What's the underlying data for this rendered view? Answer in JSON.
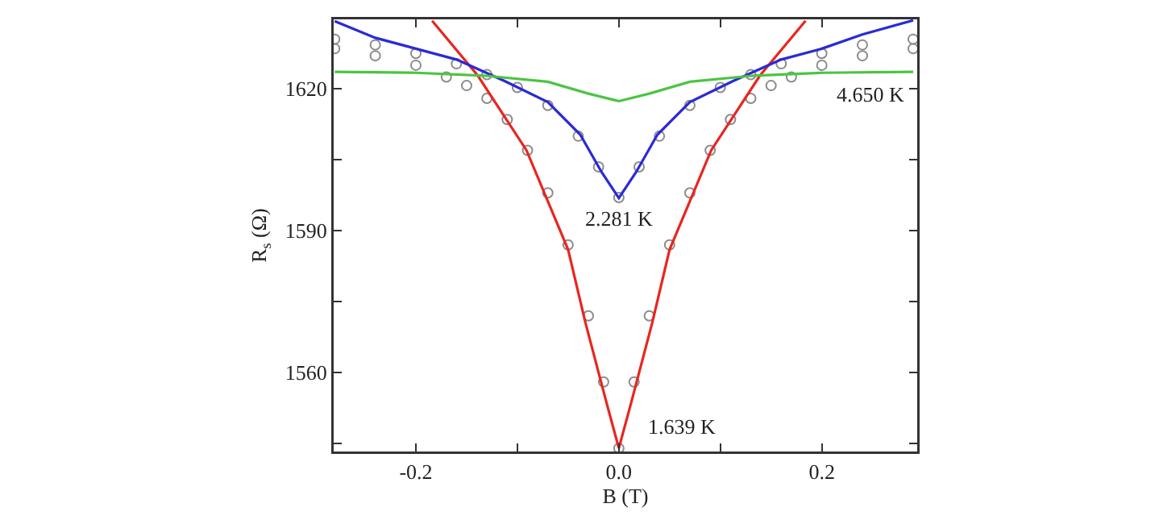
{
  "chart_data": {
    "type": "scatter",
    "xlabel": "B (T)",
    "ylabel": "R$_{s}$ (Ω)",
    "xlim": [
      -0.281,
      0.294
    ],
    "ylim": [
      1543.3,
      1634.7
    ],
    "xticks": [
      -0.2,
      {
        "value": -0.1,
        "label": null
      },
      {
        "value": 0,
        "label": "0.0"
      },
      {
        "value": 0.1,
        "label": null
      },
      0.2
    ],
    "yticks": [
      {
        "value": 1545,
        "label": null
      },
      1560,
      {
        "value": 1575,
        "label": null
      },
      1590,
      {
        "value": 1605,
        "label": null
      },
      1620
    ],
    "grid": false,
    "series": [
      {
        "marker": "circle",
        "color": "#8c8c8c",
        "x": [
          -0.28,
          -0.24,
          -0.2,
          -0.17,
          -0.15,
          -0.13,
          -0.11,
          -0.09,
          -0.07,
          -0.05,
          -0.03,
          -0.015,
          0,
          0.015,
          0.03,
          0.05,
          0.07,
          0.09,
          0.11,
          0.13,
          0.15,
          0.17,
          0.2,
          0.24,
          0.29
        ],
        "values": [
          1628.5,
          1627,
          1625,
          1622.5,
          1620.7,
          1618,
          1613.5,
          1607,
          1598,
          1587,
          1572,
          1558,
          1544,
          1558,
          1572,
          1587,
          1598,
          1607,
          1613.5,
          1618,
          1620.7,
          1622.5,
          1625,
          1627,
          1628.5
        ]
      },
      {
        "marker": "circle",
        "color": "#8c8c8c",
        "x": [
          -0.28,
          -0.24,
          -0.2,
          -0.16,
          -0.13,
          -0.1,
          -0.07,
          -0.04,
          -0.02,
          0,
          0.02,
          0.04,
          0.07,
          0.1,
          0.13,
          0.16,
          0.2,
          0.24,
          0.29
        ],
        "values": [
          1630.5,
          1629.3,
          1627.5,
          1625.3,
          1623,
          1620.3,
          1616.5,
          1610,
          1603.5,
          1597,
          1603.5,
          1610,
          1616.5,
          1620.3,
          1623,
          1625.3,
          1627.5,
          1629.3,
          1630.5
        ]
      },
      {
        "type": "line",
        "color": "#e8261f",
        "x": [
          -0.184,
          -0.139,
          -0.091,
          -0.05,
          -0.033,
          -0.012,
          0,
          0.012,
          0.033,
          0.05,
          0.091,
          0.139,
          0.184
        ],
        "values": [
          1634.4,
          1622.8,
          1607,
          1586,
          1570.6,
          1553.5,
          1544,
          1553.5,
          1570.6,
          1586,
          1607,
          1622.8,
          1634.4
        ]
      },
      {
        "type": "line",
        "color": "#2a2ad6",
        "x": [
          -0.28,
          -0.24,
          -0.2,
          -0.16,
          -0.113,
          -0.07,
          -0.038,
          -0.017,
          0,
          0.017,
          0.038,
          0.07,
          0.113,
          0.16,
          0.2,
          0.24,
          0.29
        ],
        "values": [
          1634.3,
          1630.8,
          1628.5,
          1626.2,
          1621.7,
          1617.2,
          1610.3,
          1602.4,
          1596.9,
          1602.4,
          1610.3,
          1617.2,
          1621.7,
          1626.2,
          1628.5,
          1631.5,
          1634.5
        ]
      },
      {
        "type": "line",
        "color": "#4cc444",
        "x": [
          -0.28,
          -0.2,
          -0.133,
          -0.07,
          -0.03,
          0,
          0.03,
          0.07,
          0.133,
          0.2,
          0.29
        ],
        "values": [
          1623.6,
          1623.4,
          1622.8,
          1621.5,
          1619,
          1617.4,
          1619,
          1621.5,
          1622.8,
          1623.4,
          1623.6
        ]
      }
    ],
    "annotations": [
      "2.281 K",
      "1.639 K",
      "4.650 K"
    ]
  }
}
